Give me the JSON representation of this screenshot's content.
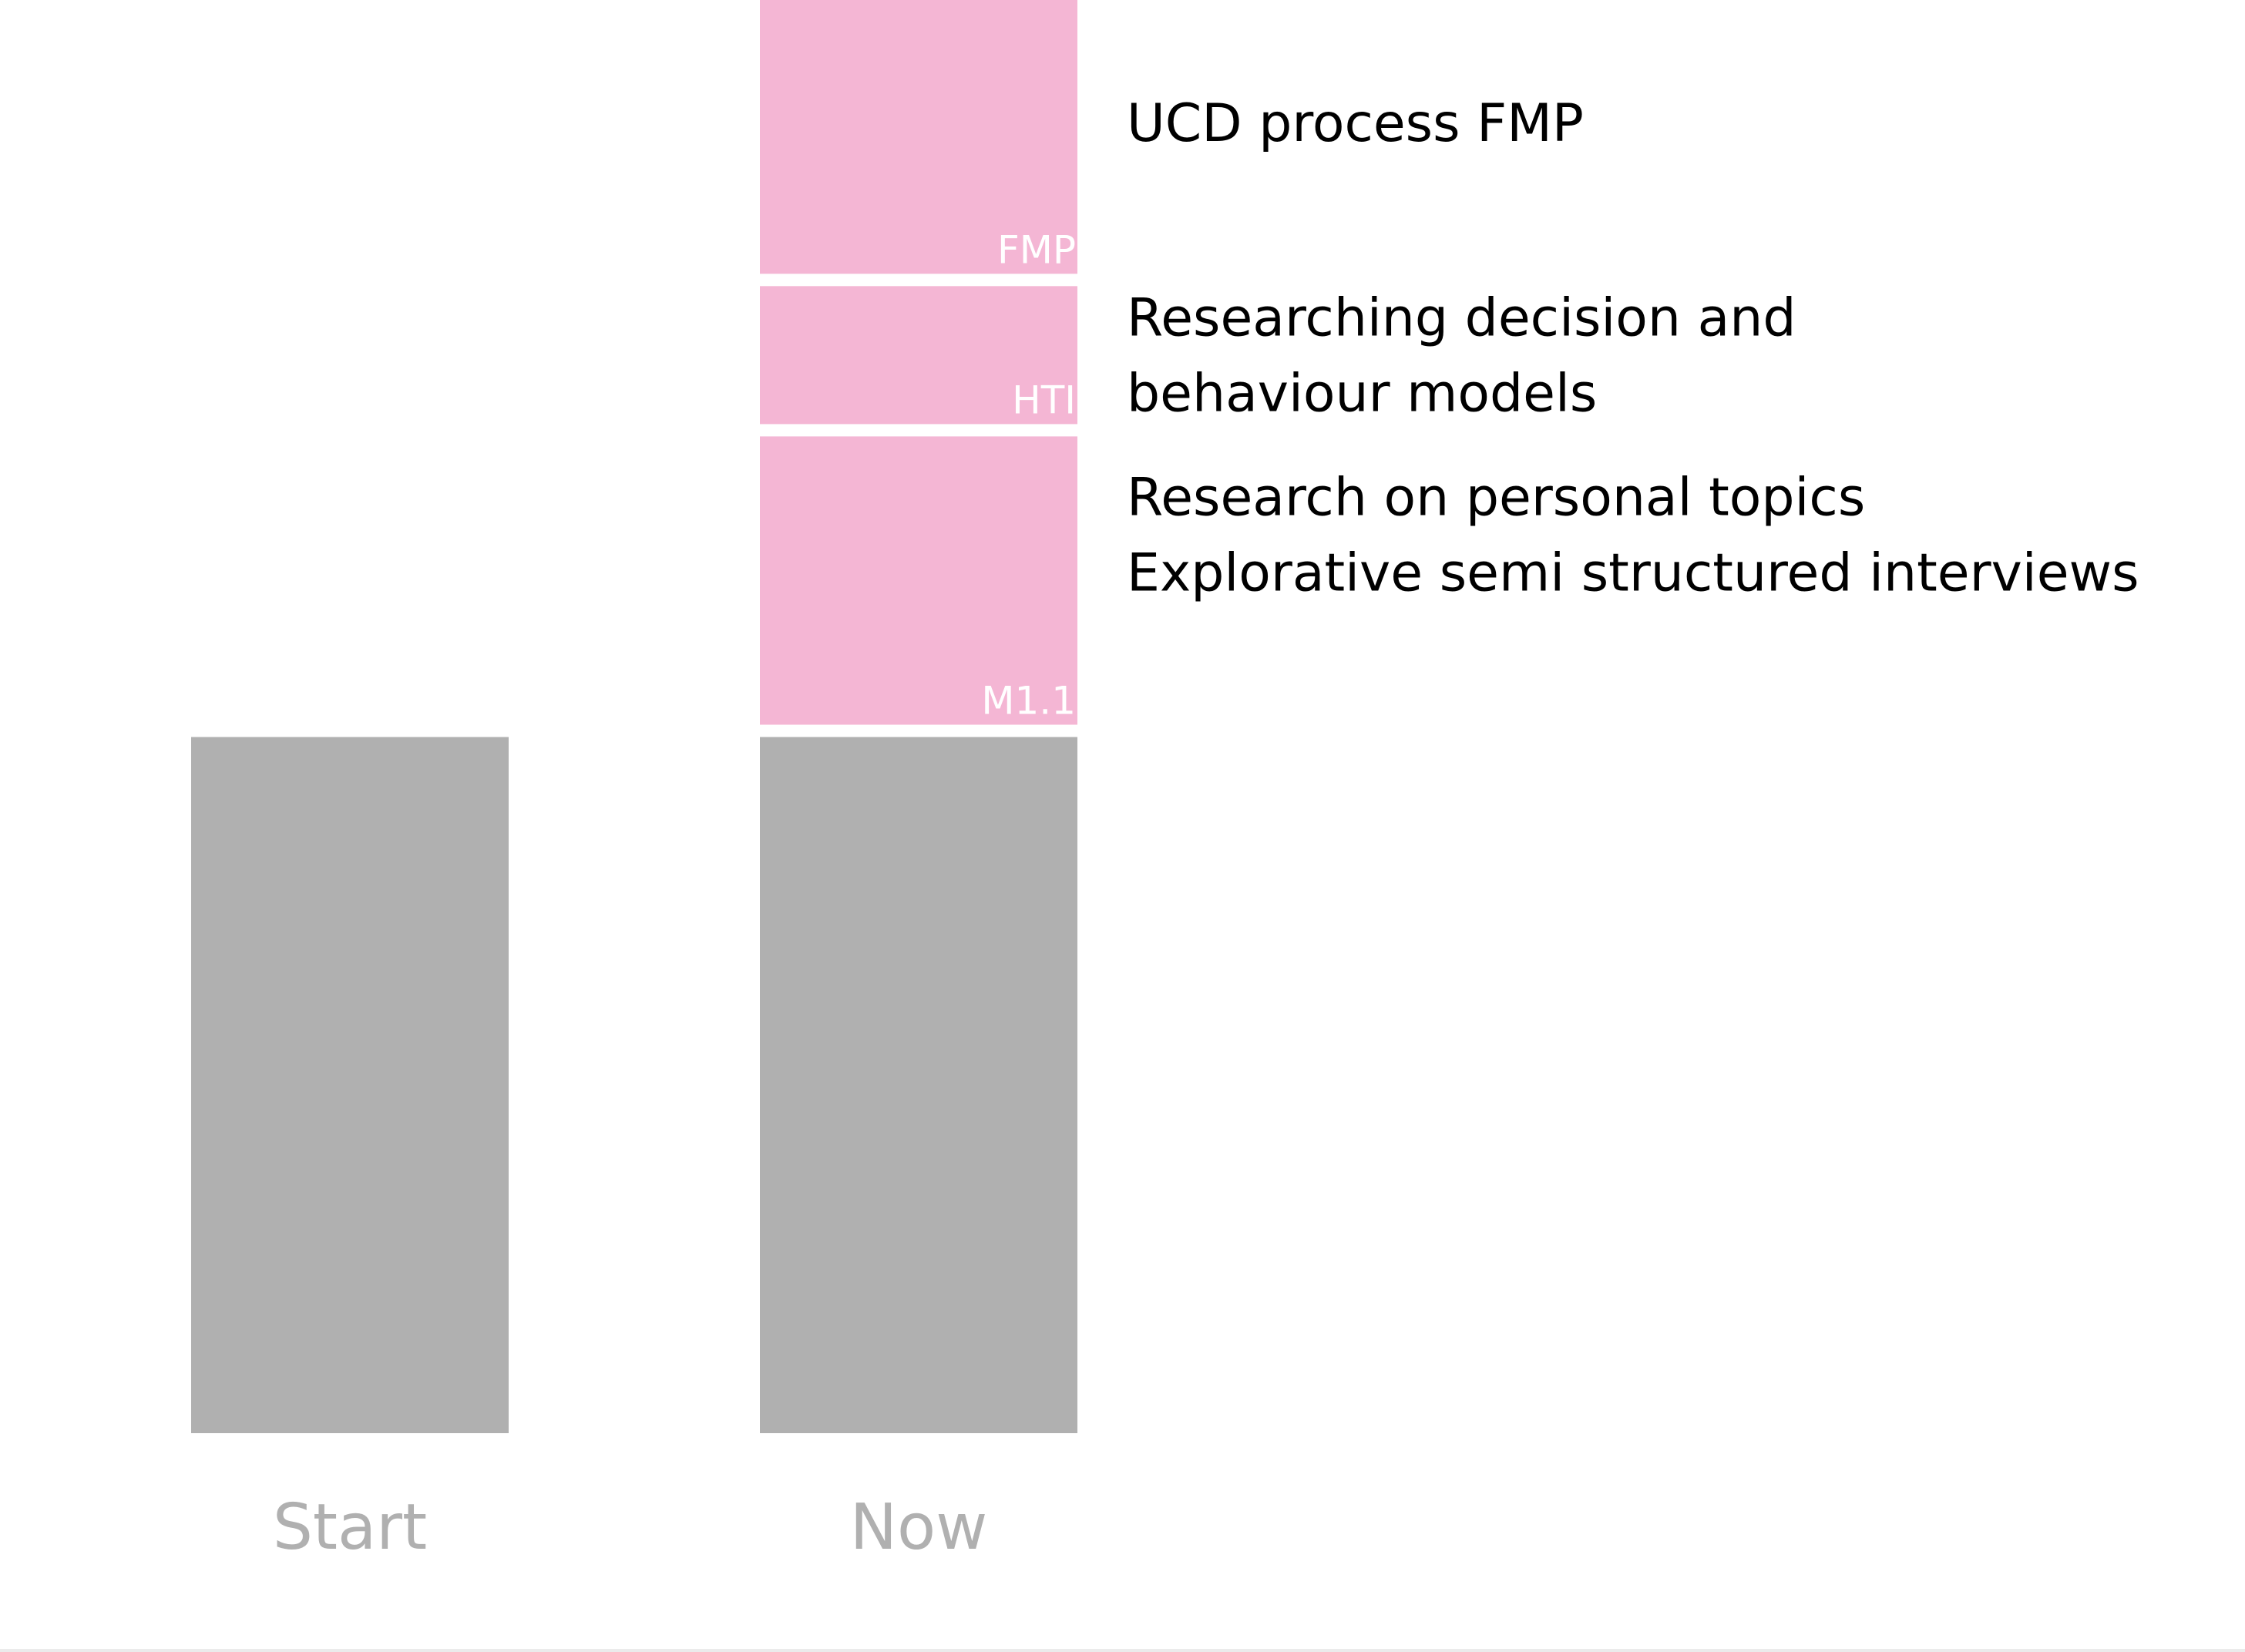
{
  "colors": {
    "base": "#b0b0b0",
    "added": "#f4b6d4",
    "category_label": "#b0b0b0",
    "segment_label": "#ffffff",
    "annotation": "#000000",
    "background": "#ffffff"
  },
  "chart_data": {
    "type": "bar",
    "stacked": true,
    "title": "",
    "xlabel": "",
    "ylabel": "",
    "grid": false,
    "legend": "none",
    "categories": [
      "Start",
      "Now"
    ],
    "ylim": [
      0,
      9
    ],
    "series": [
      {
        "values": [
          4.4,
          4.4
        ],
        "color": "#b0b0b0"
      },
      {
        "name": "M1.1",
        "values": [
          0,
          1.9
        ],
        "color": "#f4b6d4"
      },
      {
        "name": "HTI",
        "values": [
          0,
          0.95
        ],
        "color": "#f4b6d4"
      },
      {
        "name": "FMP",
        "values": [
          0,
          1.9
        ],
        "color": "#f4b6d4"
      }
    ],
    "annotations": [
      {
        "series": "FMP",
        "lines": [
          "UCD process FMP"
        ]
      },
      {
        "series": "HTI",
        "lines": [
          "Researching decision and",
          "behaviour models"
        ]
      },
      {
        "series": "M1.1",
        "lines": [
          "Research on personal topics",
          "Explorative semi structured interviews"
        ]
      }
    ]
  }
}
